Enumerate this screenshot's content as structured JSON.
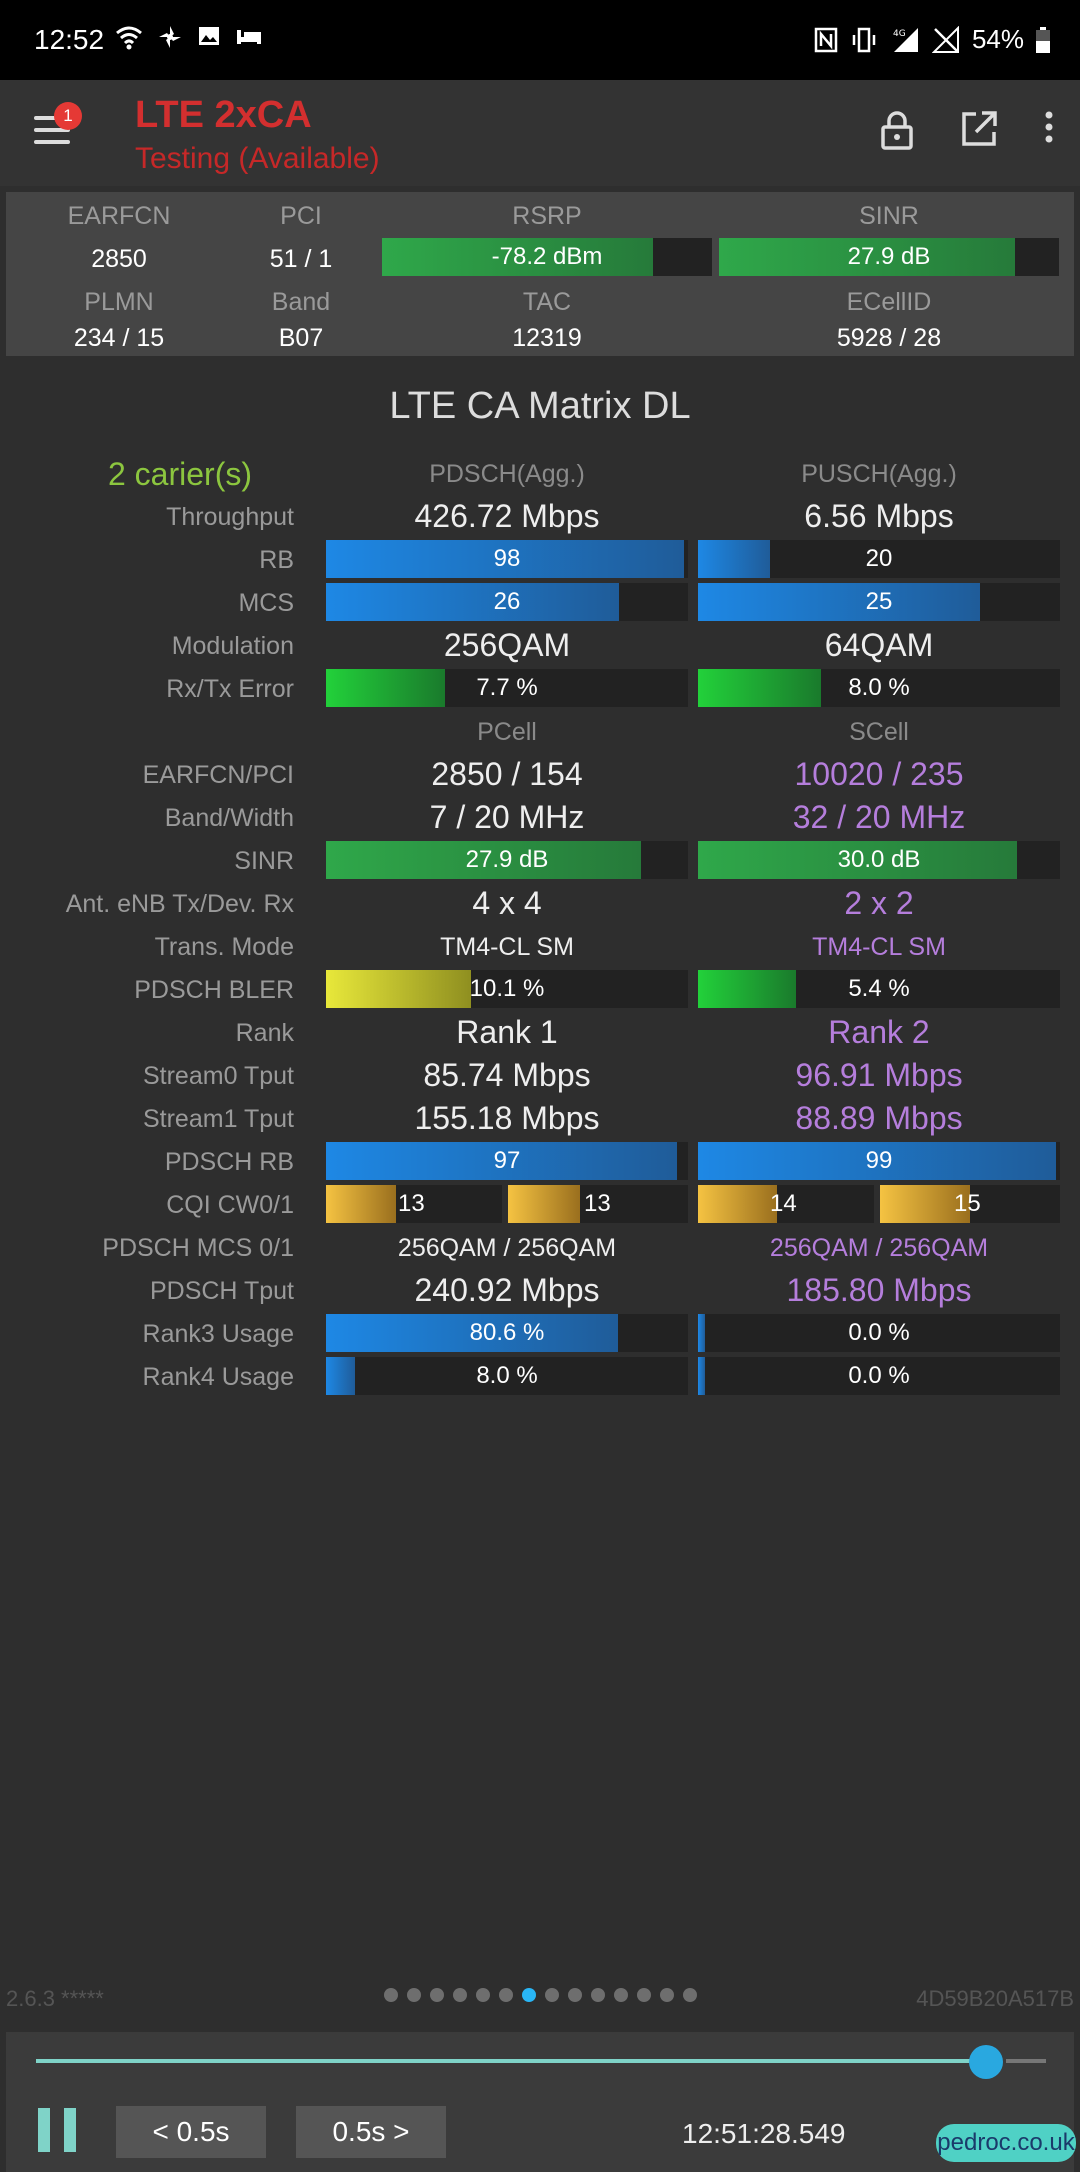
{
  "status_bar": {
    "time": "12:52",
    "battery": "54%",
    "net": "4G"
  },
  "app_bar": {
    "title": "LTE 2xCA",
    "subtitle": "Testing (Available)",
    "badge": "1"
  },
  "info": {
    "earfcn_label": "EARFCN",
    "earfcn": "2850",
    "pci_label": "PCI",
    "pci": "51 / 1",
    "rsrp_label": "RSRP",
    "rsrp": "-78.2 dBm",
    "rsrp_level": 0.82,
    "sinr_label": "SINR",
    "sinr": "27.9 dB",
    "sinr_level": 0.87,
    "plmn_label": "PLMN",
    "plmn": "234 / 15",
    "band_label": "Band",
    "band": "B07",
    "tac_label": "TAC",
    "tac": "12319",
    "ecellid_label": "ECellID",
    "ecellid": "5928 / 28"
  },
  "matrix": {
    "title": "LTE CA Matrix DL",
    "carriers": "2 carier(s)",
    "col_pdsch": "PDSCH(Agg.)",
    "col_pusch": "PUSCH(Agg.)",
    "col_pcell": "PCell",
    "col_scell": "SCell",
    "labels": {
      "throughput": "Throughput",
      "rb": "RB",
      "mcs": "MCS",
      "modulation": "Modulation",
      "rxtx_error": "Rx/Tx Error",
      "earfcn_pci": "EARFCN/PCI",
      "band_width": "Band/Width",
      "sinr": "SINR",
      "ant": "Ant. eNB Tx/Dev. Rx",
      "trans_mode": "Trans. Mode",
      "pdsch_bler": "PDSCH BLER",
      "rank": "Rank",
      "stream0": "Stream0 Tput",
      "stream1": "Stream1 Tput",
      "pdsch_rb": "PDSCH RB",
      "cqi": "CQI CW0/1",
      "pdsch_mcs": "PDSCH MCS 0/1",
      "pdsch_tput": "PDSCH Tput",
      "rank3": "Rank3 Usage",
      "rank4": "Rank4 Usage"
    },
    "agg": {
      "pdsch_throughput": "426.72 Mbps",
      "pusch_throughput": "6.56 Mbps",
      "pdsch_rb": "98",
      "pdsch_rb_level": 0.99,
      "pusch_rb": "20",
      "pusch_rb_level": 0.2,
      "pdsch_mcs": "26",
      "pdsch_mcs_level": 0.81,
      "pusch_mcs": "25",
      "pusch_mcs_level": 0.78,
      "pdsch_mod": "256QAM",
      "pusch_mod": "64QAM",
      "rx_error": "7.7 %",
      "rx_error_level": 0.33,
      "tx_error": "8.0 %",
      "tx_error_level": 0.34
    },
    "pcell": {
      "earfcn_pci": "2850 / 154",
      "band_width": "7 / 20 MHz",
      "sinr": "27.9 dB",
      "sinr_level": 0.87,
      "ant": "4 x 4",
      "trans_mode": "TM4-CL SM",
      "bler": "10.1 %",
      "bler_level": 0.4,
      "rank": "Rank 1",
      "stream0": "85.74 Mbps",
      "stream1": "155.18 Mbps",
      "pdsch_rb": "97",
      "pdsch_rb_level": 0.97,
      "cqi0": "13",
      "cqi0_level": 0.4,
      "cqi1": "13",
      "cqi1_level": 0.4,
      "pdsch_mcs": "256QAM / 256QAM",
      "pdsch_tput": "240.92 Mbps",
      "rank3": "80.6 %",
      "rank3_level": 0.806,
      "rank4": "8.0 %",
      "rank4_level": 0.08
    },
    "scell": {
      "earfcn_pci": "10020 / 235",
      "band_width": "32 / 20 MHz",
      "sinr": "30.0 dB",
      "sinr_level": 0.88,
      "ant": "2 x 2",
      "trans_mode": "TM4-CL SM",
      "bler": "5.4 %",
      "bler_level": 0.27,
      "rank": "Rank 2",
      "stream0": "96.91 Mbps",
      "stream1": "88.89 Mbps",
      "pdsch_rb": "99",
      "pdsch_rb_level": 0.99,
      "cqi0": "14",
      "cqi0_level": 0.45,
      "cqi1": "15",
      "cqi1_level": 0.5,
      "pdsch_mcs": "256QAM / 256QAM",
      "pdsch_tput": "185.80 Mbps",
      "rank3": "0.0 %",
      "rank3_level": 0.02,
      "rank4": "0.0 %",
      "rank4_level": 0.02
    }
  },
  "footer": {
    "version": "2.6.3 *****",
    "device_id": "4D59B20A517B",
    "pages": 14,
    "active_page": 6,
    "back_label": "< 0.5s",
    "forward_label": "0.5s >",
    "timestamp": "12:51:28.549",
    "slider_position": 0.96,
    "watermark": "pedroc.co.uk"
  }
}
